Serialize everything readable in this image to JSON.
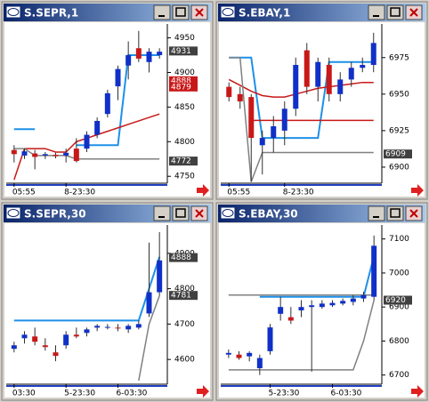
{
  "windows": [
    {
      "title": "S.SEPR,1",
      "ylim": [
        4740,
        4970
      ],
      "yticks": [
        4750,
        4800,
        4850,
        4900,
        4950
      ],
      "times": [
        "05:55",
        null,
        null,
        null,
        null,
        "8-23:30",
        null,
        null,
        null,
        null,
        null,
        null,
        null,
        null,
        null
      ],
      "candles": [
        {
          "o": 4788,
          "h": 4795,
          "l": 4770,
          "c": 4782
        },
        {
          "o": 4780,
          "h": 4790,
          "l": 4775,
          "c": 4786
        },
        {
          "o": 4783,
          "h": 4788,
          "l": 4760,
          "c": 4778
        },
        {
          "o": 4780,
          "h": 4785,
          "l": 4775,
          "c": 4782
        },
        {
          "o": 4781,
          "h": 4784,
          "l": 4776,
          "c": 4779
        },
        {
          "o": 4780,
          "h": 4790,
          "l": 4770,
          "c": 4784
        },
        {
          "o": 4790,
          "h": 4805,
          "l": 4770,
          "c": 4772
        },
        {
          "o": 4790,
          "h": 4815,
          "l": 4785,
          "c": 4810
        },
        {
          "o": 4810,
          "h": 4835,
          "l": 4805,
          "c": 4830
        },
        {
          "o": 4840,
          "h": 4875,
          "l": 4835,
          "c": 4870
        },
        {
          "o": 4880,
          "h": 4910,
          "l": 4860,
          "c": 4905
        },
        {
          "o": 4910,
          "h": 4945,
          "l": 4890,
          "c": 4925
        },
        {
          "o": 4935,
          "h": 4960,
          "l": 4915,
          "c": 4920
        },
        {
          "o": 4915,
          "h": 4935,
          "l": 4900,
          "c": 4930
        },
        {
          "o": 4925,
          "h": 4935,
          "l": 4920,
          "c": 4930
        }
      ],
      "lines": [
        {
          "color": "#1e90e8",
          "values": [
            4818,
            4818,
            4818,
            null,
            null,
            null,
            4795,
            4795,
            4795,
            4795,
            4795,
            4925,
            4925,
            4925,
            4925
          ]
        },
        {
          "color": "#c81818",
          "values": [
            4745,
            4790,
            4790,
            4790,
            4785,
            4785,
            4800,
            4805,
            4810,
            4815,
            4820,
            4825,
            4830,
            4835,
            4840
          ]
        },
        {
          "color": "#808080",
          "values": [
            4790,
            4790,
            4780,
            4780,
            4780,
            4780,
            4775,
            4775,
            4775,
            4775,
            4775,
            4775,
            4775,
            4775,
            4775
          ]
        }
      ],
      "price_labels": [
        {
          "value": 4931,
          "color": "#404040"
        },
        {
          "value": 4888,
          "color": "#c81818"
        },
        {
          "value": 4879,
          "color": "#c81818"
        },
        {
          "value": 4772,
          "color": "#404040"
        }
      ]
    },
    {
      "title": "S.EBAY,1",
      "ylim": [
        6889,
        6998
      ],
      "yticks": [
        6900,
        6925,
        6950,
        6975
      ],
      "times": [
        "05:55",
        null,
        null,
        null,
        null,
        "8-23:30",
        null,
        null,
        null,
        null,
        null,
        null,
        null,
        null
      ],
      "candles": [
        {
          "o": 6955,
          "h": 6958,
          "l": 6945,
          "c": 6948
        },
        {
          "o": 6950,
          "h": 6955,
          "l": 6940,
          "c": 6945
        },
        {
          "o": 6948,
          "h": 6950,
          "l": 6890,
          "c": 6920
        },
        {
          "o": 6915,
          "h": 6925,
          "l": 6895,
          "c": 6920
        },
        {
          "o": 6920,
          "h": 6935,
          "l": 6910,
          "c": 6928
        },
        {
          "o": 6925,
          "h": 6945,
          "l": 6915,
          "c": 6940
        },
        {
          "o": 6940,
          "h": 6975,
          "l": 6935,
          "c": 6970
        },
        {
          "o": 6980,
          "h": 6985,
          "l": 6950,
          "c": 6955
        },
        {
          "o": 6955,
          "h": 6975,
          "l": 6945,
          "c": 6972
        },
        {
          "o": 6970,
          "h": 6975,
          "l": 6945,
          "c": 6950
        },
        {
          "o": 6950,
          "h": 6965,
          "l": 6945,
          "c": 6960
        },
        {
          "o": 6960,
          "h": 6972,
          "l": 6955,
          "c": 6968
        },
        {
          "o": 6968,
          "h": 6975,
          "l": 6965,
          "c": 6970
        },
        {
          "o": 6970,
          "h": 6992,
          "l": 6965,
          "c": 6985
        }
      ],
      "lines": [
        {
          "color": "#1e90e8",
          "values": [
            6975,
            6975,
            6975,
            6920,
            6920,
            6920,
            6920,
            6920,
            6920,
            6972,
            6972,
            6972,
            6972,
            6972
          ]
        },
        {
          "color": "#c81818",
          "values": [
            6960,
            6956,
            6952,
            6949,
            6948,
            6948,
            6950,
            6952,
            6954,
            6955,
            6956,
            6957,
            6958,
            6958
          ]
        },
        {
          "color": "#c81818",
          "values": [
            null,
            null,
            6932,
            6932,
            6932,
            6932,
            6932,
            6932,
            6932,
            6932,
            6932,
            6932,
            6932,
            6932
          ]
        },
        {
          "color": "#808080",
          "values": [
            6975,
            6975,
            6890,
            6910,
            6910,
            6910,
            6910,
            6910,
            6910,
            6910,
            6910,
            6910,
            6910,
            6910
          ]
        }
      ],
      "price_labels": [
        {
          "value": 6909,
          "color": "#404040"
        }
      ]
    },
    {
      "title": "S.SEPR,30",
      "ylim": [
        4530,
        4980
      ],
      "yticks": [
        4600,
        4700,
        4800,
        4900
      ],
      "times": [
        "03:30",
        null,
        null,
        null,
        null,
        "5-23:30",
        null,
        null,
        null,
        null,
        "6-03:30",
        null,
        null,
        null,
        null
      ],
      "candles": [
        {
          "o": 4630,
          "h": 4650,
          "l": 4620,
          "c": 4640
        },
        {
          "o": 4660,
          "h": 4680,
          "l": 4645,
          "c": 4670
        },
        {
          "o": 4665,
          "h": 4690,
          "l": 4640,
          "c": 4650
        },
        {
          "o": 4640,
          "h": 4660,
          "l": 4625,
          "c": 4635
        },
        {
          "o": 4620,
          "h": 4640,
          "l": 4595,
          "c": 4610
        },
        {
          "o": 4640,
          "h": 4680,
          "l": 4630,
          "c": 4670
        },
        {
          "o": 4670,
          "h": 4690,
          "l": 4660,
          "c": 4665
        },
        {
          "o": 4675,
          "h": 4690,
          "l": 4665,
          "c": 4685
        },
        {
          "o": 4690,
          "h": 4700,
          "l": 4680,
          "c": 4695
        },
        {
          "o": 4690,
          "h": 4700,
          "l": 4685,
          "c": 4692
        },
        {
          "o": 4690,
          "h": 4700,
          "l": 4680,
          "c": 4688
        },
        {
          "o": 4685,
          "h": 4700,
          "l": 4675,
          "c": 4695
        },
        {
          "o": 4690,
          "h": 4710,
          "l": 4685,
          "c": 4700
        },
        {
          "o": 4730,
          "h": 4930,
          "l": 4720,
          "c": 4790
        },
        {
          "o": 4790,
          "h": 4960,
          "l": 4780,
          "c": 4880
        }
      ],
      "lines": [
        {
          "color": "#1e90e8",
          "values": [
            4710,
            4710,
            4710,
            4710,
            4710,
            4710,
            4710,
            4710,
            4710,
            4710,
            4710,
            4710,
            4710,
            4800,
            4890
          ]
        },
        {
          "color": "#808080",
          "values": [
            null,
            null,
            null,
            null,
            null,
            null,
            null,
            null,
            null,
            null,
            null,
            null,
            4540,
            4700,
            4780
          ]
        }
      ],
      "price_labels": [
        {
          "value": 4888,
          "color": "#404040"
        },
        {
          "value": 4781,
          "color": "#404040"
        }
      ]
    },
    {
      "title": "S.EBAY,30",
      "ylim": [
        6673,
        7141
      ],
      "yticks": [
        6700,
        6800,
        6900,
        7000,
        7100
      ],
      "times": [
        null,
        null,
        null,
        null,
        "5-23:30",
        null,
        null,
        null,
        null,
        null,
        "6-03:30",
        null,
        null,
        null,
        null
      ],
      "candles": [
        {
          "o": 6760,
          "h": 6775,
          "l": 6750,
          "c": 6765
        },
        {
          "o": 6760,
          "h": 6770,
          "l": 6745,
          "c": 6750
        },
        {
          "o": 6755,
          "h": 6770,
          "l": 6740,
          "c": 6765
        },
        {
          "o": 6720,
          "h": 6760,
          "l": 6700,
          "c": 6750
        },
        {
          "o": 6770,
          "h": 6850,
          "l": 6760,
          "c": 6840
        },
        {
          "o": 6880,
          "h": 6930,
          "l": 6860,
          "c": 6900
        },
        {
          "o": 6870,
          "h": 6900,
          "l": 6850,
          "c": 6860
        },
        {
          "o": 6890,
          "h": 6920,
          "l": 6870,
          "c": 6900
        },
        {
          "o": 6900,
          "h": 6920,
          "l": 6710,
          "c": 6905
        },
        {
          "o": 6900,
          "h": 6920,
          "l": 6895,
          "c": 6910
        },
        {
          "o": 6905,
          "h": 6920,
          "l": 6900,
          "c": 6912
        },
        {
          "o": 6910,
          "h": 6925,
          "l": 6905,
          "c": 6918
        },
        {
          "o": 6915,
          "h": 6935,
          "l": 6905,
          "c": 6925
        },
        {
          "o": 6925,
          "h": 6945,
          "l": 6915,
          "c": 6935
        },
        {
          "o": 6930,
          "h": 7110,
          "l": 6920,
          "c": 7080
        }
      ],
      "lines": [
        {
          "color": "#1e90e8",
          "values": [
            null,
            null,
            null,
            6930,
            6930,
            6930,
            6930,
            6930,
            6930,
            6930,
            6930,
            6930,
            6930,
            6930,
            7050
          ]
        },
        {
          "color": "#808080",
          "values": [
            6935,
            6935,
            6935,
            6935,
            6935,
            6935,
            6935,
            6935,
            6935,
            6935,
            6935,
            6935,
            6935,
            6935,
            6935
          ]
        },
        {
          "color": "#808080",
          "values": [
            6715,
            6715,
            6715,
            6715,
            6715,
            6715,
            6715,
            6715,
            6715,
            6715,
            6715,
            6715,
            6715,
            6800,
            6920
          ]
        }
      ],
      "price_labels": [
        {
          "value": 6920,
          "color": "#404040"
        }
      ]
    }
  ]
}
